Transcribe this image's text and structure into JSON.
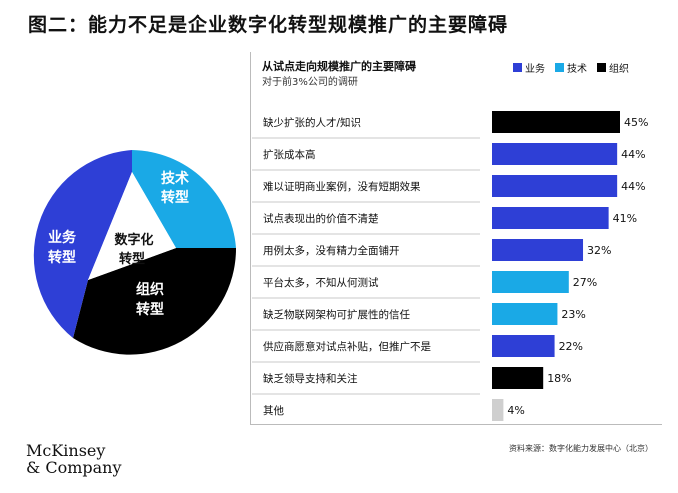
{
  "title": "图二：能力不足是企业数字化转型规模推广的主要障碍",
  "subtitle": "从试点走向规模推广的主要障碍",
  "subtitle2": "对于前3%公司的调研",
  "legend": [
    {
      "name": "业务",
      "color": "#2e3fd6"
    },
    {
      "name": "技术",
      "color": "#1aa9e6"
    },
    {
      "name": "组织",
      "color": "#000000"
    }
  ],
  "pie": {
    "center": "数字化转型",
    "segments": [
      {
        "label": "技术转型",
        "color": "#1aa9e6"
      },
      {
        "label": "组织转型",
        "color": "#000000"
      },
      {
        "label": "业务转型",
        "color": "#2e3fd6"
      }
    ]
  },
  "chart_data": {
    "type": "bar",
    "orientation": "horizontal",
    "title": "从试点走向规模推广的主要障碍",
    "subtitle": "对于前3%公司的调研",
    "categories": [
      "缺少扩张的人才/知识",
      "扩张成本高",
      "难以证明商业案例，没有短期效果",
      "试点表现出的价值不清楚",
      "用例太多，没有精力全面铺开",
      "平台太多，不知从何测试",
      "缺乏物联网架构可扩展性的信任",
      "供应商愿意对试点补贴，但推广不是",
      "缺乏领导支持和关注",
      "其他"
    ],
    "values": [
      45,
      44,
      44,
      41,
      32,
      27,
      23,
      22,
      18,
      4
    ],
    "labels": [
      "45%",
      "44%",
      "44%",
      "41%",
      "32%",
      "27%",
      "23%",
      "22%",
      "18%",
      "4%"
    ],
    "groups": [
      "组织",
      "业务",
      "业务",
      "业务",
      "业务",
      "技术",
      "技术",
      "业务",
      "组织",
      "其他"
    ],
    "group_colors": {
      "业务": "#2e3fd6",
      "技术": "#1aa9e6",
      "组织": "#000000",
      "其他": "#cfcfcf"
    },
    "xlim": [
      0,
      45
    ]
  },
  "brand": {
    "line1": "McKinsey",
    "line2": "& Company"
  },
  "source": "资料来源：数字化能力发展中心（北京）"
}
